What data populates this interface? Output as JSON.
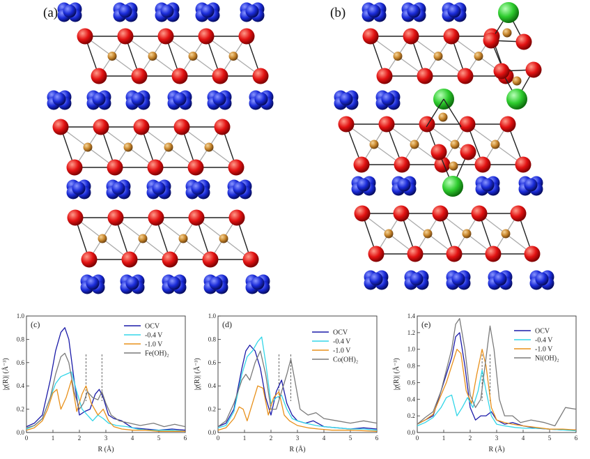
{
  "panel_a": {
    "label": "(a)"
  },
  "panel_b": {
    "label": "(b)"
  },
  "colors": {
    "O": "#e21212",
    "M": "#c8862c",
    "K": "#1a2bd8",
    "Cl": "#2ecc2e",
    "bond": "#222222",
    "inner": "#aaaaaa"
  },
  "chart_data": [
    {
      "type": "line",
      "panel": "(c)",
      "xlabel": "R (Å)",
      "ylabel": "|χ(R)| (Å⁻³)",
      "xlim": [
        0,
        6
      ],
      "ylim": [
        0,
        1.0
      ],
      "xticks": [
        0,
        1,
        2,
        3,
        4,
        5,
        6
      ],
      "yticks": [
        0.0,
        0.2,
        0.4,
        0.6,
        0.8,
        1.0
      ],
      "ytick_labels": [
        "0.0",
        "0.2",
        "0.4",
        "0.6",
        "0.8",
        "1.0"
      ],
      "vlines": [
        2.25,
        2.85
      ],
      "series": [
        {
          "name": "OCV",
          "color": "#1a1aa8",
          "x": [
            0,
            0.3,
            0.6,
            0.9,
            1.1,
            1.3,
            1.45,
            1.6,
            1.8,
            2.0,
            2.2,
            2.4,
            2.6,
            2.75,
            2.9,
            3.1,
            3.3,
            3.6,
            4.0,
            4.5,
            5.0,
            5.5,
            6.0
          ],
          "y": [
            0.05,
            0.08,
            0.15,
            0.45,
            0.7,
            0.86,
            0.9,
            0.8,
            0.45,
            0.15,
            0.18,
            0.2,
            0.33,
            0.37,
            0.3,
            0.15,
            0.12,
            0.1,
            0.04,
            0.03,
            0.02,
            0.03,
            0.02
          ]
        },
        {
          "name": "-0.4 V",
          "color": "#33d6e8",
          "x": [
            0,
            0.3,
            0.6,
            0.9,
            1.1,
            1.3,
            1.5,
            1.7,
            1.9,
            2.1,
            2.3,
            2.5,
            2.7,
            2.9,
            3.1,
            3.4,
            3.8,
            4.2,
            4.6,
            5.0,
            5.5,
            6.0
          ],
          "y": [
            0.03,
            0.06,
            0.12,
            0.3,
            0.42,
            0.48,
            0.5,
            0.52,
            0.35,
            0.2,
            0.15,
            0.1,
            0.15,
            0.12,
            0.08,
            0.06,
            0.05,
            0.03,
            0.02,
            0.02,
            0.02,
            0.01
          ]
        },
        {
          "name": "-1.0 V",
          "color": "#e8901a",
          "x": [
            0,
            0.3,
            0.6,
            0.8,
            1.0,
            1.15,
            1.3,
            1.5,
            1.7,
            1.9,
            2.1,
            2.25,
            2.45,
            2.7,
            2.9,
            3.1,
            3.3,
            3.6,
            4.0,
            4.5,
            5.0,
            6.0
          ],
          "y": [
            0.02,
            0.04,
            0.1,
            0.2,
            0.34,
            0.37,
            0.2,
            0.3,
            0.45,
            0.18,
            0.33,
            0.4,
            0.25,
            0.15,
            0.2,
            0.1,
            0.05,
            0.03,
            0.02,
            0.02,
            0.01,
            0.01
          ]
        },
        {
          "name": "Fe(OH)₂",
          "color": "#7a7a7a",
          "x": [
            0,
            0.3,
            0.6,
            0.9,
            1.1,
            1.3,
            1.45,
            1.6,
            1.8,
            2.0,
            2.15,
            2.3,
            2.5,
            2.7,
            2.85,
            3.0,
            3.2,
            3.5,
            3.9,
            4.3,
            4.8,
            5.2,
            5.6,
            6.0
          ],
          "y": [
            0.04,
            0.06,
            0.12,
            0.3,
            0.5,
            0.65,
            0.68,
            0.6,
            0.35,
            0.2,
            0.25,
            0.35,
            0.3,
            0.28,
            0.35,
            0.25,
            0.15,
            0.1,
            0.08,
            0.06,
            0.08,
            0.05,
            0.07,
            0.05
          ]
        }
      ]
    },
    {
      "type": "line",
      "panel": "(d)",
      "xlabel": "R (Å)",
      "ylabel": "|χ(R)| (Å⁻³)",
      "xlim": [
        0,
        6
      ],
      "ylim": [
        0,
        1.0
      ],
      "xticks": [
        0,
        1,
        2,
        3,
        4,
        5,
        6
      ],
      "yticks": [
        0.0,
        0.2,
        0.4,
        0.6,
        0.8,
        1.0
      ],
      "ytick_labels": [
        "0.0",
        "0.2",
        "0.4",
        "0.6",
        "0.8",
        "1.0"
      ],
      "vlines": [
        2.3,
        2.75
      ],
      "series": [
        {
          "name": "OCV",
          "color": "#1a1aa8",
          "x": [
            0,
            0.3,
            0.6,
            0.9,
            1.05,
            1.2,
            1.4,
            1.6,
            1.8,
            2.0,
            2.2,
            2.4,
            2.6,
            2.8,
            3.0,
            3.3,
            3.6,
            4.0,
            4.5,
            5.0,
            5.5,
            6.0
          ],
          "y": [
            0.05,
            0.08,
            0.2,
            0.55,
            0.7,
            0.75,
            0.7,
            0.55,
            0.3,
            0.15,
            0.35,
            0.45,
            0.25,
            0.15,
            0.1,
            0.08,
            0.1,
            0.05,
            0.04,
            0.03,
            0.04,
            0.03
          ]
        },
        {
          "name": "-0.4 V",
          "color": "#33d6e8",
          "x": [
            0,
            0.3,
            0.6,
            0.9,
            1.1,
            1.3,
            1.5,
            1.65,
            1.8,
            2.0,
            2.2,
            2.4,
            2.6,
            2.8,
            3.0,
            3.3,
            3.7,
            4.0,
            4.5,
            5.0,
            5.5,
            6.0
          ],
          "y": [
            0.04,
            0.06,
            0.18,
            0.5,
            0.65,
            0.7,
            0.78,
            0.82,
            0.6,
            0.25,
            0.3,
            0.32,
            0.2,
            0.12,
            0.1,
            0.08,
            0.06,
            0.05,
            0.04,
            0.03,
            0.03,
            0.02
          ]
        },
        {
          "name": "-1.0 V",
          "color": "#e8901a",
          "x": [
            0,
            0.3,
            0.6,
            0.8,
            0.95,
            1.1,
            1.3,
            1.5,
            1.7,
            1.9,
            2.1,
            2.3,
            2.5,
            2.7,
            3.0,
            3.4,
            3.8,
            4.3,
            5.0,
            6.0
          ],
          "y": [
            0.02,
            0.04,
            0.12,
            0.22,
            0.2,
            0.1,
            0.25,
            0.4,
            0.38,
            0.15,
            0.3,
            0.35,
            0.15,
            0.1,
            0.06,
            0.04,
            0.03,
            0.02,
            0.02,
            0.01
          ]
        },
        {
          "name": "Co(OH)₂",
          "color": "#7a7a7a",
          "x": [
            0,
            0.3,
            0.6,
            0.9,
            1.05,
            1.2,
            1.4,
            1.6,
            1.8,
            2.0,
            2.2,
            2.4,
            2.6,
            2.75,
            2.9,
            3.1,
            3.4,
            3.7,
            4.0,
            4.5,
            5.0,
            5.5,
            6.0
          ],
          "y": [
            0.05,
            0.1,
            0.25,
            0.45,
            0.5,
            0.45,
            0.6,
            0.7,
            0.5,
            0.2,
            0.2,
            0.35,
            0.5,
            0.63,
            0.45,
            0.2,
            0.15,
            0.17,
            0.12,
            0.1,
            0.08,
            0.1,
            0.08
          ]
        }
      ]
    },
    {
      "type": "line",
      "panel": "(e)",
      "xlabel": "R (Å)",
      "ylabel": "|χ(R)| (Å⁻³)",
      "xlim": [
        0,
        6
      ],
      "ylim": [
        0,
        1.4
      ],
      "xticks": [
        0,
        1,
        2,
        3,
        4,
        5,
        6
      ],
      "yticks": [
        0.0,
        0.2,
        0.4,
        0.6,
        0.8,
        1.0,
        1.2,
        1.4
      ],
      "ytick_labels": [
        "0.0",
        "0.2",
        "0.4",
        "0.6",
        "0.8",
        "1.0",
        "1.2",
        "1.4"
      ],
      "vlines": [
        2.45,
        2.75
      ],
      "series": [
        {
          "name": "OCV",
          "color": "#1a1aa8",
          "x": [
            0,
            0.3,
            0.6,
            0.9,
            1.1,
            1.3,
            1.45,
            1.6,
            1.8,
            2.0,
            2.2,
            2.4,
            2.6,
            2.8,
            3.0,
            3.3,
            3.6,
            4.0,
            4.5,
            5.0,
            5.5,
            6.0
          ],
          "y": [
            0.1,
            0.15,
            0.2,
            0.5,
            0.7,
            0.9,
            1.15,
            1.2,
            0.8,
            0.3,
            0.15,
            0.2,
            0.2,
            0.25,
            0.15,
            0.1,
            0.12,
            0.08,
            0.05,
            0.04,
            0.03,
            0.03
          ]
        },
        {
          "name": "-0.4 V",
          "color": "#33d6e8",
          "x": [
            0,
            0.3,
            0.6,
            0.9,
            1.1,
            1.3,
            1.5,
            1.7,
            1.9,
            2.1,
            2.3,
            2.45,
            2.6,
            2.8,
            3.0,
            3.3,
            3.7,
            4.1,
            4.6,
            5.0,
            5.5,
            6.0
          ],
          "y": [
            0.08,
            0.12,
            0.18,
            0.3,
            0.42,
            0.45,
            0.2,
            0.3,
            0.42,
            0.3,
            0.5,
            0.75,
            0.5,
            0.2,
            0.1,
            0.08,
            0.06,
            0.05,
            0.05,
            0.04,
            0.03,
            0.02
          ]
        },
        {
          "name": "-1.0 V",
          "color": "#e8901a",
          "x": [
            0,
            0.3,
            0.6,
            0.9,
            1.1,
            1.3,
            1.5,
            1.65,
            1.85,
            2.05,
            2.25,
            2.45,
            2.6,
            2.8,
            3.0,
            3.3,
            3.6,
            4.0,
            4.5,
            5.0,
            5.5,
            6.0
          ],
          "y": [
            0.1,
            0.15,
            0.22,
            0.45,
            0.6,
            0.8,
            1.0,
            0.95,
            0.5,
            0.35,
            0.7,
            1.0,
            0.8,
            0.3,
            0.15,
            0.12,
            0.1,
            0.08,
            0.06,
            0.04,
            0.04,
            0.03
          ]
        },
        {
          "name": "Ni(OH)₂",
          "color": "#7a7a7a",
          "x": [
            0,
            0.3,
            0.6,
            0.9,
            1.1,
            1.3,
            1.45,
            1.6,
            1.8,
            2.0,
            2.2,
            2.4,
            2.6,
            2.75,
            2.9,
            3.1,
            3.3,
            3.6,
            3.9,
            4.3,
            4.8,
            5.2,
            5.6,
            6.0
          ],
          "y": [
            0.1,
            0.18,
            0.25,
            0.5,
            0.75,
            1.0,
            1.3,
            1.37,
            1.0,
            0.45,
            0.3,
            0.4,
            0.9,
            1.28,
            1.0,
            0.4,
            0.2,
            0.2,
            0.12,
            0.15,
            0.12,
            0.08,
            0.3,
            0.28
          ]
        }
      ]
    }
  ]
}
